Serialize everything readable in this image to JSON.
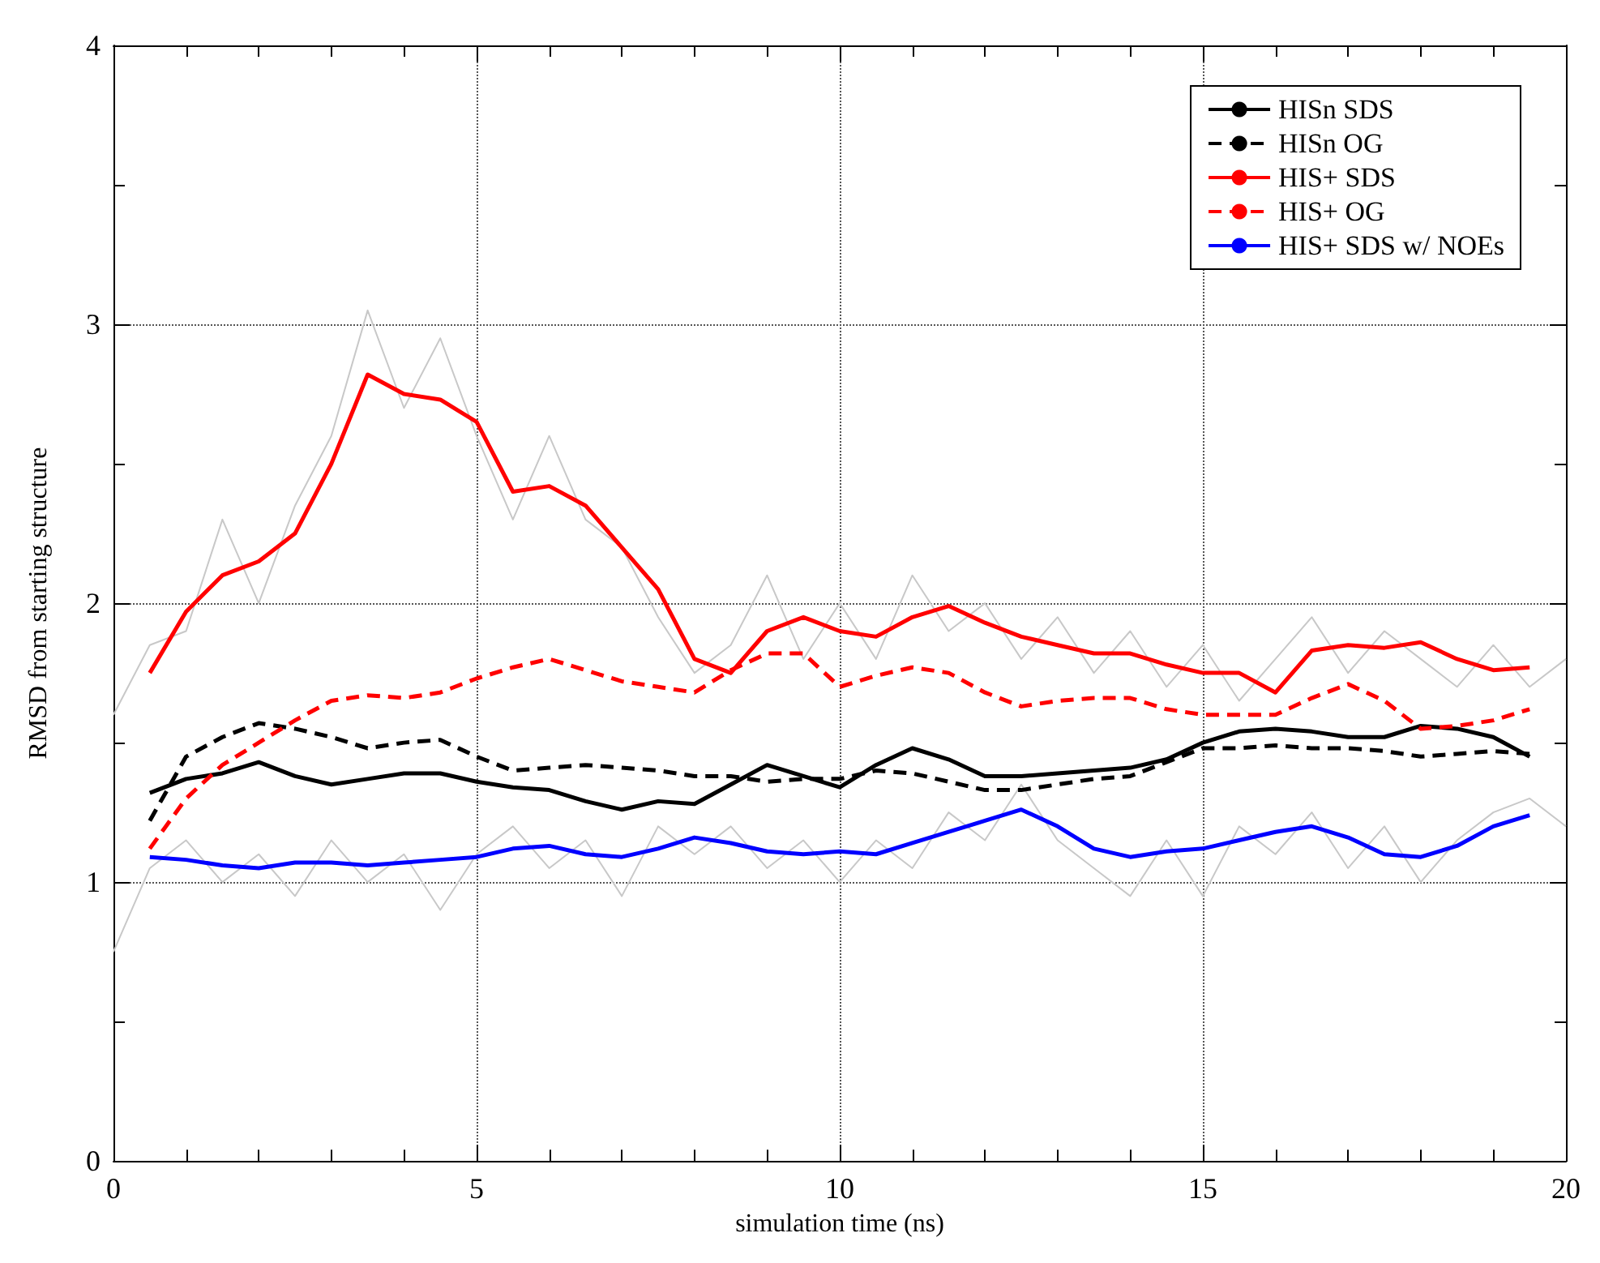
{
  "chart_data": {
    "type": "line",
    "xlabel": "simulation time (ns)",
    "ylabel": "RMSD from starting structure",
    "xlim": [
      0,
      20
    ],
    "ylim": [
      0,
      4
    ],
    "xticks": [
      0,
      {
        "value": 1,
        "label": null
      },
      {
        "value": 2,
        "label": null
      },
      {
        "value": 3,
        "label": null
      },
      {
        "value": 4,
        "label": null
      },
      5,
      {
        "value": 6,
        "label": null
      },
      {
        "value": 7,
        "label": null
      },
      {
        "value": 8,
        "label": null
      },
      {
        "value": 9,
        "label": null
      },
      10,
      {
        "value": 11,
        "label": null
      },
      {
        "value": 12,
        "label": null
      },
      {
        "value": 13,
        "label": null
      },
      {
        "value": 14,
        "label": null
      },
      15,
      {
        "value": 16,
        "label": null
      },
      {
        "value": 17,
        "label": null
      },
      {
        "value": 18,
        "label": null
      },
      {
        "value": 19,
        "label": null
      },
      20
    ],
    "yticks": [
      0,
      {
        "value": 0.5,
        "label": null
      },
      1,
      {
        "value": 1.5,
        "label": null
      },
      2,
      {
        "value": 2.5,
        "label": null
      },
      3,
      {
        "value": 3.5,
        "label": null
      },
      4
    ],
    "grid": true,
    "legend": "top right",
    "marker": "none",
    "series": [
      {
        "color": "#c8c8c8",
        "line_style": "solid",
        "x": [
          0,
          0.5,
          1,
          1.5,
          2,
          2.5,
          3,
          3.5,
          4,
          4.5,
          5,
          5.5,
          6,
          6.5,
          7,
          7.5,
          8,
          8.5,
          9,
          9.5,
          10,
          10.5,
          11,
          11.5,
          12,
          12.5,
          13,
          13.5,
          14,
          14.5,
          15,
          15.5,
          16,
          16.5,
          17,
          17.5,
          18,
          18.5,
          19,
          19.5,
          20
        ],
        "values": [
          1.6,
          1.85,
          1.9,
          2.3,
          2.0,
          2.35,
          2.6,
          3.05,
          2.7,
          2.95,
          2.6,
          2.3,
          2.6,
          2.3,
          2.2,
          1.95,
          1.75,
          1.85,
          2.1,
          1.8,
          2.0,
          1.8,
          2.1,
          1.9,
          2.0,
          1.8,
          1.95,
          1.75,
          1.9,
          1.7,
          1.85,
          1.65,
          1.8,
          1.95,
          1.75,
          1.9,
          1.8,
          1.7,
          1.85,
          1.7,
          1.8
        ]
      },
      {
        "color": "#c8c8c8",
        "line_style": "solid",
        "x": [
          0,
          0.5,
          1,
          1.5,
          2,
          2.5,
          3,
          3.5,
          4,
          4.5,
          5,
          5.5,
          6,
          6.5,
          7,
          7.5,
          8,
          8.5,
          9,
          9.5,
          10,
          10.5,
          11,
          11.5,
          12,
          12.5,
          13,
          13.5,
          14,
          14.5,
          15,
          15.5,
          16,
          16.5,
          17,
          17.5,
          18,
          18.5,
          19,
          19.5,
          20
        ],
        "values": [
          0.75,
          1.05,
          1.15,
          1.0,
          1.1,
          0.95,
          1.15,
          1.0,
          1.1,
          0.9,
          1.1,
          1.2,
          1.05,
          1.15,
          0.95,
          1.2,
          1.1,
          1.2,
          1.05,
          1.15,
          1.0,
          1.15,
          1.05,
          1.25,
          1.15,
          1.35,
          1.15,
          1.05,
          0.95,
          1.15,
          0.95,
          1.2,
          1.1,
          1.25,
          1.05,
          1.2,
          1.0,
          1.15,
          1.25,
          1.3,
          1.2
        ]
      },
      {
        "name": "HISn SDS",
        "color": "#000000",
        "line_style": "solid",
        "values": [
          1.32,
          1.37,
          1.39,
          1.43,
          1.38,
          1.35,
          1.37,
          1.39,
          1.39,
          1.36,
          1.34,
          1.33,
          1.29,
          1.26,
          1.29,
          1.28,
          1.35,
          1.42,
          1.38,
          1.34,
          1.42,
          1.48,
          1.44,
          1.38,
          1.38,
          1.39,
          1.4,
          1.41,
          1.44,
          1.5,
          1.54,
          1.55,
          1.54,
          1.52,
          1.52,
          1.56,
          1.55,
          1.52,
          1.45
        ]
      },
      {
        "name": "HISn OG",
        "color": "#000000",
        "line_style": "dashed",
        "values": [
          1.22,
          1.45,
          1.52,
          1.57,
          1.55,
          1.52,
          1.48,
          1.5,
          1.51,
          1.45,
          1.4,
          1.41,
          1.42,
          1.41,
          1.4,
          1.38,
          1.38,
          1.36,
          1.37,
          1.37,
          1.4,
          1.39,
          1.36,
          1.33,
          1.33,
          1.35,
          1.37,
          1.38,
          1.43,
          1.48,
          1.48,
          1.49,
          1.48,
          1.48,
          1.47,
          1.45,
          1.46,
          1.47,
          1.46
        ]
      },
      {
        "name": "HIS+ SDS",
        "color": "#ff0000",
        "line_style": "solid",
        "values": [
          1.75,
          1.97,
          2.1,
          2.15,
          2.25,
          2.5,
          2.82,
          2.75,
          2.73,
          2.65,
          2.4,
          2.42,
          2.35,
          2.2,
          2.05,
          1.8,
          1.75,
          1.9,
          1.95,
          1.9,
          1.88,
          1.95,
          1.99,
          1.93,
          1.88,
          1.85,
          1.82,
          1.82,
          1.78,
          1.75,
          1.75,
          1.68,
          1.83,
          1.85,
          1.84,
          1.86,
          1.8,
          1.76,
          1.77
        ]
      },
      {
        "name": "HIS+ OG",
        "color": "#ff0000",
        "line_style": "dashed",
        "values": [
          1.12,
          1.3,
          1.42,
          1.5,
          1.58,
          1.65,
          1.67,
          1.66,
          1.68,
          1.73,
          1.77,
          1.8,
          1.76,
          1.72,
          1.7,
          1.68,
          1.76,
          1.82,
          1.82,
          1.7,
          1.74,
          1.77,
          1.75,
          1.68,
          1.63,
          1.65,
          1.66,
          1.66,
          1.62,
          1.6,
          1.6,
          1.6,
          1.66,
          1.71,
          1.65,
          1.55,
          1.56,
          1.58,
          1.62
        ]
      },
      {
        "name": "HIS+ SDS w/ NOEs",
        "color": "#0000ff",
        "line_style": "solid",
        "values": [
          1.09,
          1.08,
          1.06,
          1.05,
          1.07,
          1.07,
          1.06,
          1.07,
          1.08,
          1.09,
          1.12,
          1.13,
          1.1,
          1.09,
          1.12,
          1.16,
          1.14,
          1.11,
          1.1,
          1.11,
          1.1,
          1.14,
          1.18,
          1.22,
          1.26,
          1.2,
          1.12,
          1.09,
          1.11,
          1.12,
          1.15,
          1.18,
          1.2,
          1.16,
          1.1,
          1.09,
          1.13,
          1.2,
          1.24
        ]
      }
    ],
    "x": [
      0.5,
      1,
      1.5,
      2,
      2.5,
      3,
      3.5,
      4,
      4.5,
      5,
      5.5,
      6,
      6.5,
      7,
      7.5,
      8,
      8.5,
      9,
      9.5,
      10,
      10.5,
      11,
      11.5,
      12,
      12.5,
      13,
      13.5,
      14,
      14.5,
      15,
      15.5,
      16,
      16.5,
      17,
      17.5,
      18,
      18.5,
      19,
      19.5
    ]
  }
}
